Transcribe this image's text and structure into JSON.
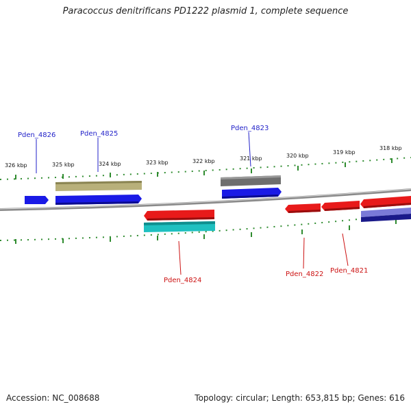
{
  "title": "Paracoccus denitrificans PD1222 plasmid 1, complete sequence",
  "footer": {
    "accession": "Accession: NC_008688",
    "summary": "Topology: circular; Length: 653,815 bp; Genes: 616"
  },
  "colors": {
    "background": "#ffffff",
    "backbone": "#8a8a8a",
    "tick": "#2e8b2e",
    "forward_label": "#1f1fc8",
    "reverse_label": "#cc1111",
    "feature_blue": "#1a1ae6",
    "feature_red": "#e81a1a",
    "feature_khaki": "#b8b07a",
    "feature_gray": "#6e6e6e",
    "feature_cyan": "#1fc0c0",
    "feature_purple": "#7a7ad8",
    "feature_navy": "#1a1a8a"
  },
  "scale_labels": [
    "326 kbp",
    "325 kbp",
    "324 kbp",
    "323 kbp",
    "322 kbp",
    "321 kbp",
    "320 kbp",
    "319 kbp",
    "318 kbp"
  ],
  "gene_labels": {
    "top": [
      "Pden_4826",
      "Pden_4825",
      "Pden_4823"
    ],
    "bottom": [
      "Pden_4824",
      "Pden_4822",
      "Pden_4821"
    ]
  }
}
